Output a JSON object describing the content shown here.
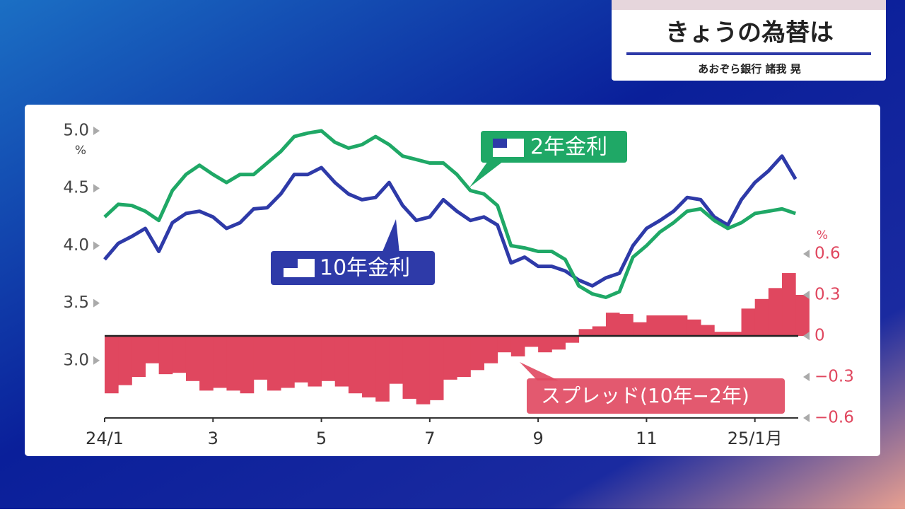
{
  "header": {
    "title": "きょうの為替は",
    "subtitle": "あおぞら銀行 諸我 晃"
  },
  "chart_data": {
    "type": "line",
    "x": [
      0,
      0.25,
      0.5,
      0.75,
      1,
      1.25,
      1.5,
      1.75,
      2,
      2.25,
      2.5,
      2.75,
      3,
      3.25,
      3.5,
      3.75,
      4,
      4.25,
      4.5,
      4.75,
      5,
      5.25,
      5.5,
      5.75,
      6,
      6.25,
      6.5,
      6.75,
      7,
      7.25,
      7.5,
      7.75,
      8,
      8.25,
      8.5,
      8.75,
      9,
      9.25,
      9.5,
      9.75,
      10,
      10.25,
      10.5,
      10.75,
      11,
      11.25,
      11.5,
      11.75,
      12,
      12.25,
      12.5,
      12.75
    ],
    "xlim": [
      0,
      12.8
    ],
    "xticks": [
      {
        "value": 0,
        "label": "24/1"
      },
      {
        "value": 2,
        "label": "3"
      },
      {
        "value": 4,
        "label": "5"
      },
      {
        "value": 6,
        "label": "7"
      },
      {
        "value": 8,
        "label": "9"
      },
      {
        "value": 10,
        "label": "11"
      },
      {
        "value": 12,
        "label": "25/1月"
      }
    ],
    "ylim": [
      2.5,
      5
    ],
    "yticks": [
      {
        "value": 3,
        "label": "3.0"
      },
      3.5,
      {
        "value": 4,
        "label": "4.0"
      },
      4.5,
      {
        "value": 5,
        "label": "5.0"
      }
    ],
    "y_unit": "%",
    "y2lim": [
      -0.6,
      1.5
    ],
    "y2ticks": [
      {
        "value": -0.6,
        "label": "−0.6"
      },
      {
        "value": -0.3,
        "label": "−0.3"
      },
      0,
      0.3,
      0.6
    ],
    "y2_unit": "%",
    "series": [
      {
        "name": "10年金利",
        "color": "#2e3aa8",
        "values": [
          3.88,
          4.02,
          4.08,
          4.15,
          3.95,
          4.2,
          4.28,
          4.3,
          4.25,
          4.15,
          4.2,
          4.32,
          4.33,
          4.45,
          4.62,
          4.62,
          4.68,
          4.55,
          4.45,
          4.4,
          4.42,
          4.55,
          4.35,
          4.22,
          4.25,
          4.4,
          4.3,
          4.22,
          4.25,
          4.18,
          3.85,
          3.9,
          3.82,
          3.82,
          3.78,
          3.7,
          3.65,
          3.72,
          3.76,
          4,
          4.15,
          4.22,
          4.3,
          4.42,
          4.4,
          4.25,
          4.18,
          4.4,
          4.55,
          4.65,
          4.78,
          4.58
        ]
      },
      {
        "name": "2年金利",
        "color": "#1fa866",
        "values": [
          4.25,
          4.36,
          4.35,
          4.3,
          4.22,
          4.48,
          4.62,
          4.7,
          4.62,
          4.55,
          4.62,
          4.62,
          4.72,
          4.82,
          4.95,
          4.98,
          5,
          4.9,
          4.85,
          4.88,
          4.95,
          4.88,
          4.78,
          4.75,
          4.72,
          4.72,
          4.62,
          4.48,
          4.45,
          4.35,
          4,
          3.98,
          3.95,
          3.95,
          3.88,
          3.65,
          3.58,
          3.55,
          3.6,
          3.9,
          4,
          4.12,
          4.2,
          4.3,
          4.32,
          4.22,
          4.15,
          4.2,
          4.28,
          4.3,
          4.32,
          4.28
        ]
      },
      {
        "name": "スプレッド(10年−2年)",
        "color": "#e0475f",
        "type": "bar",
        "axis": "y2",
        "values": [
          -0.42,
          -0.36,
          -0.3,
          -0.2,
          -0.28,
          -0.27,
          -0.33,
          -0.4,
          -0.38,
          -0.4,
          -0.42,
          -0.32,
          -0.4,
          -0.38,
          -0.34,
          -0.37,
          -0.33,
          -0.37,
          -0.42,
          -0.45,
          -0.48,
          -0.35,
          -0.46,
          -0.5,
          -0.47,
          -0.32,
          -0.3,
          -0.25,
          -0.2,
          -0.12,
          -0.15,
          -0.08,
          -0.12,
          -0.1,
          -0.05,
          0.05,
          0.07,
          0.17,
          0.16,
          0.1,
          0.15,
          0.15,
          0.15,
          0.12,
          0.08,
          0.03,
          0.03,
          0.2,
          0.27,
          0.35,
          0.46,
          0.3
        ]
      }
    ]
  }
}
